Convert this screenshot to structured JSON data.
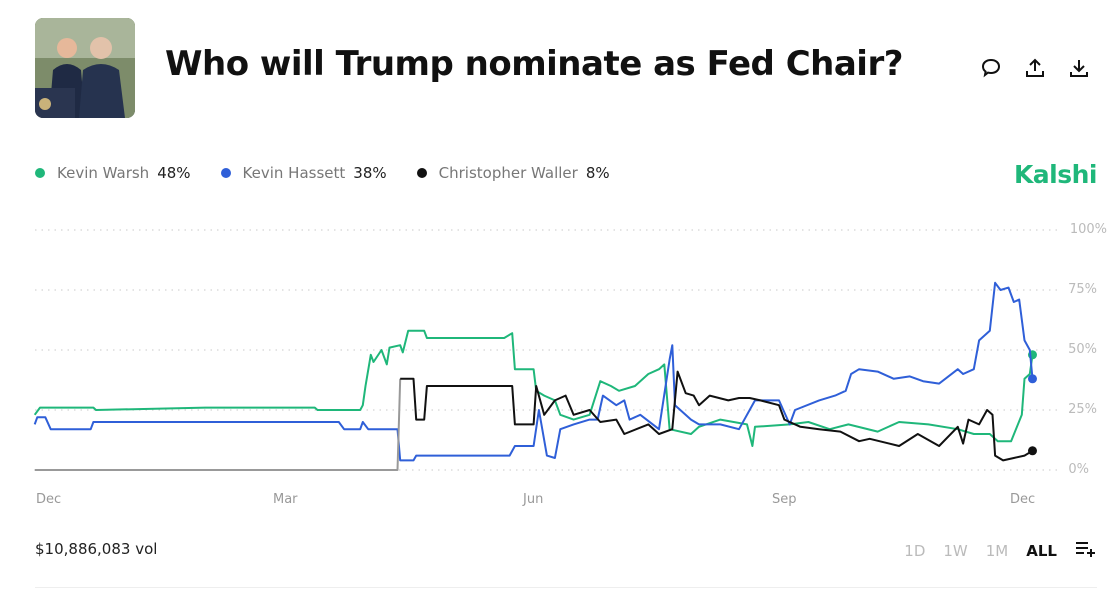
{
  "header": {
    "title": "Who will Trump nominate as Fed Chair?",
    "icons": [
      "comment-icon",
      "share-icon",
      "download-icon"
    ]
  },
  "brand": {
    "name": "Kalshi",
    "color": "#1fb77a"
  },
  "legend": [
    {
      "name": "Kevin Warsh",
      "value": "48%",
      "color": "#1fb77a"
    },
    {
      "name": "Kevin Hassett",
      "value": "38%",
      "color": "#2f5fd8"
    },
    {
      "name": "Christopher Waller",
      "value": "8%",
      "color": "#111111"
    }
  ],
  "footer": {
    "volume": "$10,886,083 vol",
    "ranges": [
      {
        "label": "1D",
        "active": false
      },
      {
        "label": "1W",
        "active": false
      },
      {
        "label": "1M",
        "active": false
      },
      {
        "label": "ALL",
        "active": true
      }
    ]
  },
  "chart_data": {
    "type": "line",
    "title": "",
    "xlabel": "",
    "ylabel": "",
    "ylim": [
      0,
      100
    ],
    "y_ticks": [
      "100%",
      "75%",
      "50%",
      "25%",
      "0%"
    ],
    "x_ticks": [
      {
        "label": "Dec",
        "date": "2024-12-01"
      },
      {
        "label": "Mar",
        "date": "2025-03-01"
      },
      {
        "label": "Jun",
        "date": "2025-06-01"
      },
      {
        "label": "Sep",
        "date": "2025-09-01"
      },
      {
        "label": "Dec",
        "date": "2025-12-01"
      }
    ],
    "x_range": [
      "2024-11-26",
      "2025-12-05"
    ],
    "grid": "horizontal dotted",
    "legend_position": "top-left",
    "series": [
      {
        "name": "Kevin Warsh",
        "color": "#1fb77a",
        "points": [
          [
            "2024-11-26",
            23
          ],
          [
            "2024-11-28",
            26
          ],
          [
            "2024-12-18",
            26
          ],
          [
            "2024-12-19",
            25
          ],
          [
            "2025-01-29",
            26
          ],
          [
            "2025-03-11",
            26
          ],
          [
            "2025-03-12",
            25
          ],
          [
            "2025-03-28",
            25
          ],
          [
            "2025-03-29",
            27
          ],
          [
            "2025-03-30",
            35
          ],
          [
            "2025-04-01",
            48
          ],
          [
            "2025-04-02",
            45
          ],
          [
            "2025-04-05",
            50
          ],
          [
            "2025-04-07",
            44
          ],
          [
            "2025-04-08",
            51
          ],
          [
            "2025-04-12",
            52
          ],
          [
            "2025-04-13",
            49
          ],
          [
            "2025-04-15",
            58
          ],
          [
            "2025-04-21",
            58
          ],
          [
            "2025-04-22",
            55
          ],
          [
            "2025-05-21",
            55
          ],
          [
            "2025-05-24",
            57
          ],
          [
            "2025-05-25",
            42
          ],
          [
            "2025-06-01",
            42
          ],
          [
            "2025-06-02",
            33
          ],
          [
            "2025-06-05",
            31
          ],
          [
            "2025-06-09",
            29
          ],
          [
            "2025-06-11",
            23
          ],
          [
            "2025-06-16",
            21
          ],
          [
            "2025-06-22",
            23
          ],
          [
            "2025-06-26",
            37
          ],
          [
            "2025-06-30",
            35
          ],
          [
            "2025-07-03",
            33
          ],
          [
            "2025-07-09",
            35
          ],
          [
            "2025-07-14",
            40
          ],
          [
            "2025-07-18",
            42
          ],
          [
            "2025-07-20",
            44
          ],
          [
            "2025-07-22",
            17
          ],
          [
            "2025-07-30",
            15
          ],
          [
            "2025-08-02",
            18
          ],
          [
            "2025-08-10",
            21
          ],
          [
            "2025-08-20",
            19
          ],
          [
            "2025-08-22",
            10
          ],
          [
            "2025-08-23",
            18
          ],
          [
            "2025-09-05",
            19
          ],
          [
            "2025-09-12",
            20
          ],
          [
            "2025-09-20",
            17
          ],
          [
            "2025-09-27",
            19
          ],
          [
            "2025-10-08",
            16
          ],
          [
            "2025-10-16",
            20
          ],
          [
            "2025-10-27",
            19
          ],
          [
            "2025-11-07",
            17
          ],
          [
            "2025-11-13",
            15
          ],
          [
            "2025-11-19",
            15
          ],
          [
            "2025-11-22",
            12
          ],
          [
            "2025-11-27",
            12
          ],
          [
            "2025-12-01",
            23
          ],
          [
            "2025-12-02",
            38
          ],
          [
            "2025-12-04",
            40
          ],
          [
            "2025-12-05",
            48
          ]
        ]
      },
      {
        "name": "Kevin Hassett",
        "color": "#2f5fd8",
        "points": [
          [
            "2024-11-26",
            19
          ],
          [
            "2024-11-27",
            22
          ],
          [
            "2024-11-30",
            22
          ],
          [
            "2024-12-02",
            17
          ],
          [
            "2024-12-17",
            17
          ],
          [
            "2024-12-18",
            20
          ],
          [
            "2025-03-20",
            20
          ],
          [
            "2025-03-22",
            17
          ],
          [
            "2025-03-28",
            17
          ],
          [
            "2025-03-29",
            20
          ],
          [
            "2025-03-31",
            17
          ],
          [
            "2025-04-11",
            17
          ],
          [
            "2025-04-12",
            4
          ],
          [
            "2025-04-17",
            4
          ],
          [
            "2025-04-18",
            6
          ],
          [
            "2025-05-23",
            6
          ],
          [
            "2025-05-25",
            10
          ],
          [
            "2025-06-01",
            10
          ],
          [
            "2025-06-03",
            25
          ],
          [
            "2025-06-06",
            6
          ],
          [
            "2025-06-09",
            5
          ],
          [
            "2025-06-11",
            17
          ],
          [
            "2025-06-16",
            19
          ],
          [
            "2025-06-22",
            21
          ],
          [
            "2025-06-25",
            21
          ],
          [
            "2025-06-27",
            31
          ],
          [
            "2025-07-02",
            27
          ],
          [
            "2025-07-05",
            29
          ],
          [
            "2025-07-07",
            21
          ],
          [
            "2025-07-11",
            23
          ],
          [
            "2025-07-18",
            17
          ],
          [
            "2025-07-22",
            46
          ],
          [
            "2025-07-23",
            52
          ],
          [
            "2025-07-24",
            27
          ],
          [
            "2025-07-30",
            21
          ],
          [
            "2025-08-02",
            19
          ],
          [
            "2025-08-10",
            19
          ],
          [
            "2025-08-17",
            17
          ],
          [
            "2025-08-23",
            29
          ],
          [
            "2025-09-01",
            29
          ],
          [
            "2025-09-05",
            19
          ],
          [
            "2025-09-07",
            25
          ],
          [
            "2025-09-16",
            29
          ],
          [
            "2025-09-22",
            31
          ],
          [
            "2025-09-26",
            33
          ],
          [
            "2025-09-28",
            40
          ],
          [
            "2025-10-01",
            42
          ],
          [
            "2025-10-08",
            41
          ],
          [
            "2025-10-14",
            38
          ],
          [
            "2025-10-20",
            39
          ],
          [
            "2025-10-25",
            37
          ],
          [
            "2025-10-31",
            36
          ],
          [
            "2025-11-07",
            42
          ],
          [
            "2025-11-09",
            40
          ],
          [
            "2025-11-13",
            42
          ],
          [
            "2025-11-15",
            54
          ],
          [
            "2025-11-19",
            58
          ],
          [
            "2025-11-21",
            78
          ],
          [
            "2025-11-23",
            75
          ],
          [
            "2025-11-26",
            76
          ],
          [
            "2025-11-28",
            70
          ],
          [
            "2025-11-30",
            71
          ],
          [
            "2025-12-02",
            54
          ],
          [
            "2025-12-04",
            50
          ],
          [
            "2025-12-05",
            38
          ]
        ]
      },
      {
        "name": "Christopher Waller",
        "color": "#111111",
        "points": [
          [
            "2024-11-26",
            0
          ],
          [
            "2025-04-11",
            0
          ],
          [
            "2025-04-12",
            38
          ],
          [
            "2025-04-17",
            38
          ],
          [
            "2025-04-18",
            21
          ],
          [
            "2025-04-21",
            21
          ],
          [
            "2025-04-22",
            35
          ],
          [
            "2025-05-15",
            35
          ],
          [
            "2025-05-17",
            35
          ],
          [
            "2025-05-24",
            35
          ],
          [
            "2025-05-25",
            19
          ],
          [
            "2025-06-01",
            19
          ],
          [
            "2025-06-02",
            35
          ],
          [
            "2025-06-05",
            23
          ],
          [
            "2025-06-09",
            29
          ],
          [
            "2025-06-13",
            31
          ],
          [
            "2025-06-16",
            23
          ],
          [
            "2025-06-22",
            25
          ],
          [
            "2025-06-26",
            20
          ],
          [
            "2025-07-02",
            21
          ],
          [
            "2025-07-05",
            15
          ],
          [
            "2025-07-14",
            19
          ],
          [
            "2025-07-18",
            15
          ],
          [
            "2025-07-23",
            17
          ],
          [
            "2025-07-25",
            41
          ],
          [
            "2025-07-28",
            32
          ],
          [
            "2025-07-31",
            31
          ],
          [
            "2025-08-02",
            27
          ],
          [
            "2025-08-06",
            31
          ],
          [
            "2025-08-13",
            29
          ],
          [
            "2025-08-17",
            30
          ],
          [
            "2025-08-21",
            30
          ],
          [
            "2025-08-25",
            29
          ],
          [
            "2025-09-01",
            27
          ],
          [
            "2025-09-03",
            21
          ],
          [
            "2025-09-09",
            18
          ],
          [
            "2025-09-16",
            17
          ],
          [
            "2025-09-24",
            16
          ],
          [
            "2025-10-01",
            12
          ],
          [
            "2025-10-05",
            13
          ],
          [
            "2025-10-16",
            10
          ],
          [
            "2025-10-23",
            15
          ],
          [
            "2025-10-31",
            10
          ],
          [
            "2025-11-07",
            18
          ],
          [
            "2025-11-09",
            11
          ],
          [
            "2025-11-11",
            21
          ],
          [
            "2025-11-15",
            19
          ],
          [
            "2025-11-18",
            25
          ],
          [
            "2025-11-20",
            23
          ],
          [
            "2025-11-21",
            6
          ],
          [
            "2025-11-24",
            4
          ],
          [
            "2025-11-28",
            5
          ],
          [
            "2025-12-02",
            6
          ],
          [
            "2025-12-05",
            8
          ]
        ]
      }
    ]
  }
}
